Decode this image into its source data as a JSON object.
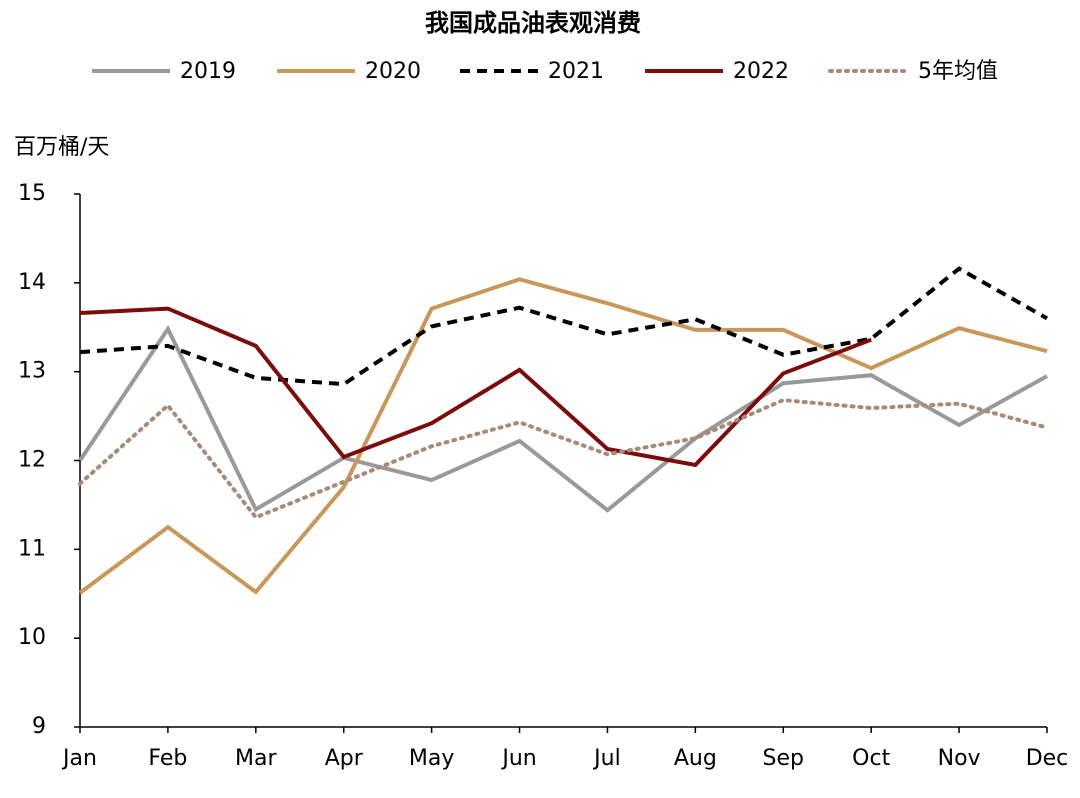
{
  "chart_data": {
    "type": "line",
    "title": "我国成品油表观消费",
    "y_label": "百万桶/天",
    "categories": [
      "Jan",
      "Feb",
      "Mar",
      "Apr",
      "May",
      "Jun",
      "Jul",
      "Aug",
      "Sep",
      "Oct",
      "Nov",
      "Dec"
    ],
    "series": [
      {
        "name": "2019",
        "color": "#999999",
        "style": "solid",
        "values": [
          12.0,
          13.48,
          11.45,
          12.03,
          11.78,
          12.22,
          11.44,
          12.25,
          12.87,
          12.96,
          12.4,
          12.95
        ]
      },
      {
        "name": "2020",
        "color": "#c8975a",
        "style": "solid",
        "values": [
          10.51,
          11.25,
          10.52,
          11.7,
          13.71,
          14.04,
          13.77,
          13.47,
          13.47,
          13.04,
          13.49,
          13.23
        ]
      },
      {
        "name": "2021",
        "color": "#000000",
        "style": "dashed",
        "values": [
          13.22,
          13.29,
          12.93,
          12.86,
          13.51,
          13.72,
          13.42,
          13.59,
          13.19,
          13.37,
          14.16,
          13.6
        ]
      },
      {
        "name": "2022",
        "color": "#7a0c0c",
        "style": "solid",
        "values": [
          13.66,
          13.71,
          13.29,
          12.04,
          12.42,
          13.02,
          12.13,
          11.95,
          12.98,
          13.36,
          null,
          null
        ]
      },
      {
        "name": "5年均值",
        "color": "#a88a78",
        "style": "dotted",
        "values": [
          11.74,
          12.62,
          11.36,
          11.76,
          12.16,
          12.43,
          12.07,
          12.25,
          12.68,
          12.59,
          12.64,
          12.37
        ]
      }
    ],
    "ylim": [
      9,
      15
    ],
    "yticks": [
      9,
      10,
      11,
      12,
      13,
      14,
      15
    ],
    "grid": false
  }
}
